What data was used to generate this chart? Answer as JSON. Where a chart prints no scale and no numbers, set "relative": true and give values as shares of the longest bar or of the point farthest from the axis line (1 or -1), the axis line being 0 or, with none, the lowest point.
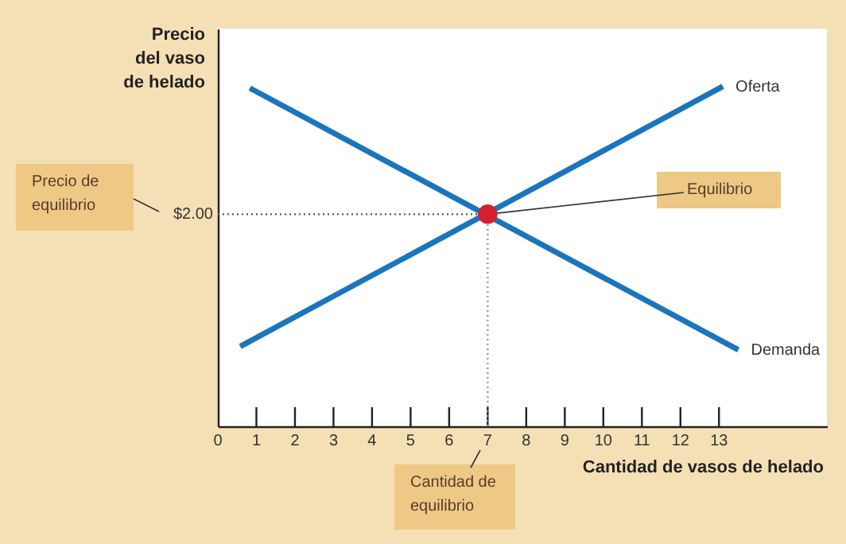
{
  "chart_data": {
    "type": "line",
    "relative": true,
    "ylabel": "Precio\ndel vaso\nde helado",
    "xlabel": "Cantidad de vasos de helado",
    "xlim": [
      0,
      15.8
    ],
    "xticks": [
      0,
      1,
      2,
      3,
      4,
      5,
      6,
      7,
      8,
      9,
      10,
      11,
      12,
      13
    ],
    "series": [
      {
        "name": "Oferta",
        "color": "#1b75bc",
        "x": [
          0.58,
          13.1
        ],
        "values": [
          0.235,
          1.0
        ]
      },
      {
        "name": "Demanda",
        "color": "#1b75bc",
        "x": [
          0.83,
          13.5
        ],
        "values": [
          0.995,
          0.225
        ]
      },
      {
        "type": "scatter",
        "color": "#d2202f",
        "marker": "circle",
        "x": [
          7
        ],
        "values": [
          0.624
        ]
      }
    ],
    "ref_lines": [
      {
        "axis": "y",
        "value": 0.624,
        "label": null,
        "line_style": "dotted",
        "color": "#555555"
      },
      {
        "axis": "x",
        "value": 7,
        "label": null,
        "line_style": "dotted",
        "color": "#999999"
      }
    ],
    "annotations": [
      "$2.00",
      {
        "text": "Equilibrio",
        "x": 7,
        "y": 0.624
      },
      "Precio de\nequilibrio",
      "Cantidad de\nequilibrio"
    ],
    "grid": false
  }
}
